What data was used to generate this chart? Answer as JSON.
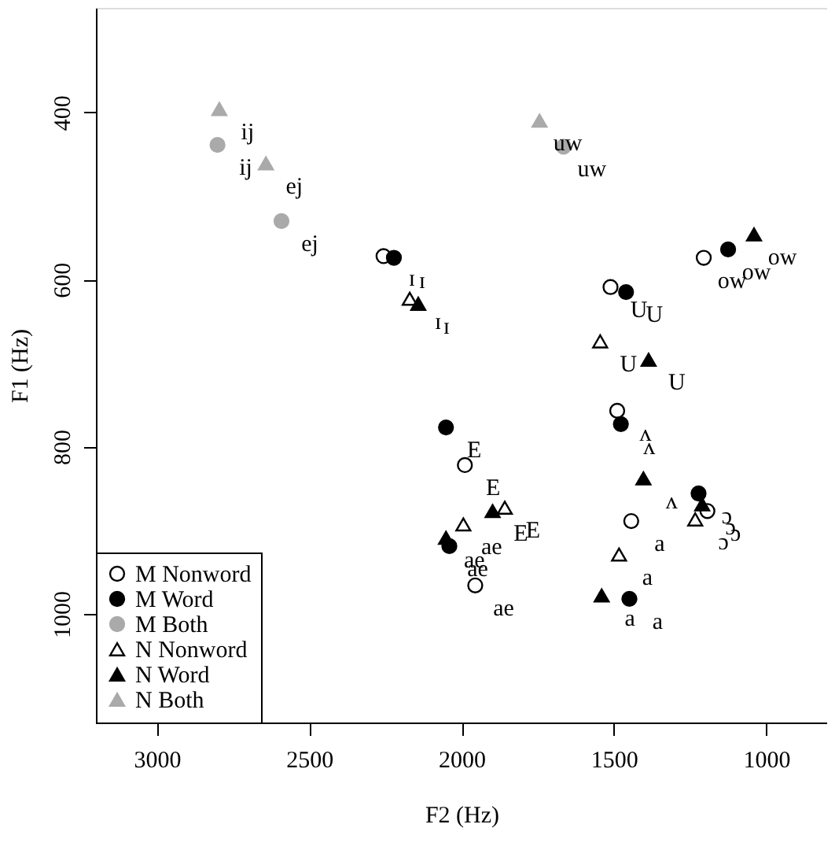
{
  "chart_data": {
    "type": "scatter",
    "xlabel": "F2 (Hz)",
    "ylabel": "F1 (Hz)",
    "xlim": [
      3200,
      800
    ],
    "xticks": [
      3000,
      2500,
      2000,
      1500,
      1000
    ],
    "ylim": [
      1130,
      275
    ],
    "yticks": [
      400,
      600,
      800,
      1000
    ],
    "grid": false,
    "legend": "bottom left",
    "series": [
      {
        "name": "M Nonword",
        "color": "#ffffff",
        "marker": "circle",
        "x": [
          2256,
          1511,
          1205,
          1989,
          1955,
          1489,
          1193,
          1443
        ],
        "values": [
          572,
          609,
          574,
          822,
          966,
          757,
          877,
          889
        ]
      },
      {
        "name": "M Word",
        "color": "#000000",
        "marker": "circle",
        "x": [
          2222,
          1460,
          1125,
          2051,
          2040,
          1477,
          1222,
          1449
        ],
        "values": [
          574,
          615,
          564,
          777,
          919,
          773,
          856,
          982
        ]
      },
      {
        "name": "M Both",
        "color": "#aaaaaa",
        "marker": "circle",
        "x": [
          2801,
          2591,
          1665
        ],
        "values": [
          439,
          530,
          441
        ]
      },
      {
        "name": "N Nonword",
        "color": "#ffffff",
        "marker": "triangle",
        "x": [
          2170,
          1545,
          1858,
          1994,
          1233,
          1483
        ],
        "values": [
          623,
          674,
          873,
          893,
          887,
          929
        ]
      },
      {
        "name": "N Word",
        "color": "#000000",
        "marker": "triangle",
        "x": [
          2142,
          1386,
          1040,
          1898,
          2051,
          1403,
          1210,
          1540
        ],
        "values": [
          629,
          696,
          546,
          877,
          909,
          838,
          869,
          978
        ]
      },
      {
        "name": "N Both",
        "color": "#aaaaaa",
        "marker": "triangle",
        "x": [
          2795,
          2642,
          1744
        ],
        "values": [
          396,
          461,
          410
        ]
      }
    ],
    "annotations": [
      {
        "text": "ɪ",
        "x": 2256,
        "y": 572
      },
      {
        "text": "U",
        "x": 1511,
        "y": 609
      },
      {
        "text": "ow",
        "x": 1205,
        "y": 574
      },
      {
        "text": "E",
        "x": 1989,
        "y": 822
      },
      {
        "text": "ae",
        "x": 1955,
        "y": 966
      },
      {
        "text": "ʌ",
        "x": 1489,
        "y": 757
      },
      {
        "text": "ɔ",
        "x": 1193,
        "y": 877
      },
      {
        "text": "a",
        "x": 1443,
        "y": 889
      },
      {
        "text": "ɪ",
        "x": 2222,
        "y": 574
      },
      {
        "text": "U",
        "x": 1460,
        "y": 615
      },
      {
        "text": "ow",
        "x": 1125,
        "y": 564
      },
      {
        "text": "E",
        "x": 2051,
        "y": 777
      },
      {
        "text": "ae",
        "x": 2040,
        "y": 919
      },
      {
        "text": "ʌ",
        "x": 1477,
        "y": 773
      },
      {
        "text": "ɔ",
        "x": 1222,
        "y": 856
      },
      {
        "text": "a",
        "x": 1449,
        "y": 982
      },
      {
        "text": "ij",
        "x": 2801,
        "y": 439
      },
      {
        "text": "ej",
        "x": 2591,
        "y": 530
      },
      {
        "text": "uw",
        "x": 1665,
        "y": 441
      },
      {
        "text": "ɪ",
        "x": 2170,
        "y": 623
      },
      {
        "text": "U",
        "x": 1545,
        "y": 674
      },
      {
        "text": "E",
        "x": 1858,
        "y": 873
      },
      {
        "text": "ae",
        "x": 1994,
        "y": 893
      },
      {
        "text": "ɔ",
        "x": 1233,
        "y": 887
      },
      {
        "text": "a",
        "x": 1483,
        "y": 929
      },
      {
        "text": "ɪ",
        "x": 2142,
        "y": 629
      },
      {
        "text": "U",
        "x": 1386,
        "y": 696
      },
      {
        "text": "ow",
        "x": 1040,
        "y": 546
      },
      {
        "text": "E",
        "x": 1898,
        "y": 877
      },
      {
        "text": "ae",
        "x": 2051,
        "y": 909
      },
      {
        "text": "ʌ",
        "x": 1403,
        "y": 838
      },
      {
        "text": "ɔ",
        "x": 1210,
        "y": 869
      },
      {
        "text": "a",
        "x": 1540,
        "y": 978
      },
      {
        "text": "ij",
        "x": 2795,
        "y": 396
      },
      {
        "text": "ej",
        "x": 2642,
        "y": 461
      },
      {
        "text": "uw",
        "x": 1744,
        "y": 410
      }
    ]
  }
}
